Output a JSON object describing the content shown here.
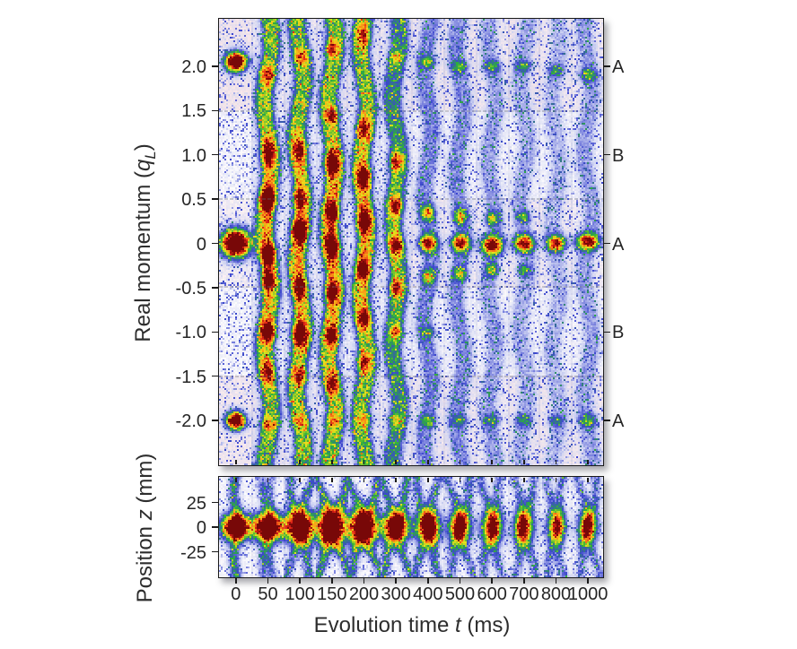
{
  "axes": {
    "x": {
      "label_prefix": "Evolution time ",
      "label_var": "t",
      "label_suffix": " (ms)",
      "tick_labels": [
        "0",
        "50",
        "100",
        "150",
        "200",
        "300",
        "400",
        "500",
        "600",
        "700",
        "800",
        "1000"
      ]
    },
    "momentum_y": {
      "label_prefix": "Real momentum (",
      "label_var": "q",
      "label_sub": "L",
      "label_suffix": ")",
      "tick_labels": [
        "2.0",
        "1.5",
        "1.0",
        "0.5",
        "0",
        "-0.5",
        "-1.0",
        "-1.5",
        "-2.0"
      ]
    },
    "position_y": {
      "label_prefix": "Position ",
      "label_var": "z",
      "label_suffix": " (mm)",
      "tick_labels": [
        "25",
        "0",
        "-25"
      ]
    }
  },
  "colors": {
    "background": "#ffffff",
    "text": "#262626",
    "panel_border": "#1b1b1b",
    "pink_background": "#f6dcde",
    "jet_low_blue": "#3c46ce",
    "jet_green": "#2cb03a",
    "jet_yellow": "#e8e21c",
    "jet_orange": "#fa9816",
    "jet_red": "#e52618",
    "jet_dark_red": "#780808"
  },
  "chart_data": [
    {
      "name": "momentum-distribution-heatmap",
      "type": "heatmap",
      "title": "",
      "xlabel": "Evolution time t (ms)",
      "ylabel": "Real momentum (qL)",
      "x_values_ms": [
        0,
        50,
        100,
        150,
        200,
        300,
        400,
        500,
        600,
        700,
        800,
        1000
      ],
      "ylim": [
        -2.52,
        2.52
      ],
      "y_ticks": [
        2.0,
        1.5,
        1.0,
        0.5,
        0,
        -0.5,
        -1.0,
        -1.5,
        -2.0
      ],
      "band_separators_q": [
        1.5,
        0.5,
        -0.5,
        -1.5
      ],
      "right_row_labels": [
        [
          "A",
          2.0
        ],
        [
          "B",
          1.0
        ],
        [
          "A",
          0.0
        ],
        [
          "B",
          -1.0
        ],
        [
          "A",
          -2.0
        ]
      ],
      "colormap": "jet_on_white",
      "legend": "none",
      "grid": "dotted horizontal band separators",
      "columns": [
        {
          "t": 0,
          "streak": 0.0,
          "peaks": [
            [
              0.0,
              1.6,
              5.2,
              5.0
            ],
            [
              2.05,
              1.45,
              3.9,
              3.6
            ],
            [
              -2.0,
              1.4,
              3.4,
              3.2
            ]
          ]
        },
        {
          "t": 50,
          "streak": 0.32,
          "peaks": [
            [
              -0.05,
              0.3,
              2.6,
              40
            ],
            [
              1.9,
              0.42,
              2.6,
              4.0
            ],
            [
              1.02,
              0.66,
              2.8,
              5.0
            ],
            [
              0.5,
              0.95,
              2.9,
              4.5
            ],
            [
              -0.12,
              0.72,
              2.8,
              3.8
            ],
            [
              -0.42,
              0.6,
              2.6,
              3.5
            ],
            [
              -1.0,
              0.78,
              2.8,
              4.0
            ],
            [
              -1.45,
              0.55,
              2.6,
              4.5
            ],
            [
              -2.05,
              0.33,
              3.0,
              3.0
            ]
          ]
        },
        {
          "t": 100,
          "streak": 0.33,
          "peaks": [
            [
              -0.1,
              0.3,
              2.7,
              40
            ],
            [
              2.1,
              0.4,
              2.8,
              3.0
            ],
            [
              1.05,
              0.55,
              2.8,
              4.5
            ],
            [
              0.5,
              0.5,
              2.6,
              3.5
            ],
            [
              0.15,
              0.85,
              2.9,
              4.0
            ],
            [
              -0.5,
              0.55,
              2.6,
              3.5
            ],
            [
              -1.02,
              0.92,
              3.0,
              4.2
            ],
            [
              -1.5,
              0.5,
              2.6,
              3.5
            ],
            [
              -2.0,
              0.3,
              3.0,
              3.0
            ]
          ]
        },
        {
          "t": 150,
          "streak": 0.34,
          "peaks": [
            [
              0.0,
              0.3,
              2.7,
              40
            ],
            [
              2.2,
              0.42,
              2.6,
              3.5
            ],
            [
              1.45,
              0.48,
              2.6,
              3.5
            ],
            [
              0.9,
              0.8,
              2.9,
              4.2
            ],
            [
              0.35,
              0.62,
              2.7,
              3.6
            ],
            [
              -0.02,
              0.8,
              2.9,
              4.0
            ],
            [
              -0.55,
              0.62,
              2.7,
              3.6
            ],
            [
              -1.05,
              0.63,
              2.7,
              3.8
            ],
            [
              -1.58,
              0.55,
              2.7,
              4.2
            ],
            [
              -2.0,
              0.3,
              3.0,
              3.0
            ]
          ]
        },
        {
          "t": 200,
          "streak": 0.32,
          "peaks": [
            [
              0.1,
              0.28,
              2.7,
              40
            ],
            [
              2.35,
              0.5,
              2.6,
              5.0
            ],
            [
              1.3,
              0.52,
              2.6,
              4.0
            ],
            [
              0.75,
              0.68,
              2.8,
              4.0
            ],
            [
              0.25,
              0.72,
              2.8,
              4.0
            ],
            [
              -0.3,
              0.56,
              2.7,
              3.6
            ],
            [
              -0.85,
              0.55,
              2.7,
              3.6
            ],
            [
              -1.35,
              0.5,
              2.6,
              3.6
            ],
            [
              -2.0,
              0.28,
              3.0,
              3.0
            ]
          ]
        },
        {
          "t": 300,
          "streak": 0.24,
          "peaks": [
            [
              0.0,
              0.2,
              2.7,
              35
            ],
            [
              2.1,
              0.32,
              2.8,
              2.8
            ],
            [
              0.92,
              0.55,
              2.7,
              3.6
            ],
            [
              0.42,
              0.6,
              2.7,
              3.4
            ],
            [
              -0.02,
              0.62,
              2.9,
              3.4
            ],
            [
              -0.5,
              0.52,
              2.7,
              3.2
            ],
            [
              -1.0,
              0.38,
              2.7,
              2.8
            ],
            [
              -2.0,
              0.28,
              3.0,
              2.6
            ]
          ]
        },
        {
          "t": 400,
          "streak": 0.13,
          "peaks": [
            [
              2.05,
              0.32,
              3.2,
              2.4
            ],
            [
              0.35,
              0.55,
              2.7,
              3.0
            ],
            [
              0.0,
              0.88,
              3.4,
              3.1
            ],
            [
              -0.38,
              0.5,
              2.7,
              2.8
            ],
            [
              -1.0,
              0.25,
              2.8,
              2.2
            ],
            [
              -2.0,
              0.3,
              3.2,
              2.4
            ]
          ]
        },
        {
          "t": 500,
          "streak": 0.12,
          "peaks": [
            [
              2.0,
              0.3,
              3.2,
              2.4
            ],
            [
              0.3,
              0.5,
              2.6,
              2.8
            ],
            [
              0.0,
              0.9,
              3.4,
              3.1
            ],
            [
              -0.35,
              0.45,
              2.6,
              2.6
            ],
            [
              -2.0,
              0.28,
              3.2,
              2.4
            ]
          ]
        },
        {
          "t": 600,
          "streak": 0.1,
          "peaks": [
            [
              2.0,
              0.3,
              3.2,
              2.4
            ],
            [
              0.28,
              0.45,
              2.6,
              2.6
            ],
            [
              -0.02,
              1.0,
              4.0,
              3.4
            ],
            [
              -0.3,
              0.4,
              2.6,
              2.6
            ],
            [
              -2.0,
              0.26,
              3.2,
              2.4
            ]
          ]
        },
        {
          "t": 700,
          "streak": 0.09,
          "peaks": [
            [
              2.0,
              0.28,
              3.2,
              2.4
            ],
            [
              0.3,
              0.35,
              2.5,
              2.4
            ],
            [
              0.0,
              0.95,
              3.7,
              3.1
            ],
            [
              -0.3,
              0.32,
              2.5,
              2.4
            ],
            [
              -2.0,
              0.25,
              3.2,
              2.4
            ]
          ]
        },
        {
          "t": 800,
          "streak": 0.08,
          "peaks": [
            [
              1.95,
              0.26,
              3.2,
              2.4
            ],
            [
              0.0,
              0.85,
              3.4,
              3.0
            ],
            [
              -2.0,
              0.24,
              3.2,
              2.4
            ]
          ]
        },
        {
          "t": 1000,
          "streak": 0.1,
          "peaks": [
            [
              1.9,
              0.32,
              3.6,
              2.6
            ],
            [
              0.02,
              0.95,
              4.2,
              3.0
            ],
            [
              -2.0,
              0.3,
              3.6,
              2.6
            ]
          ]
        }
      ]
    },
    {
      "name": "position-distribution-heatmap",
      "type": "heatmap",
      "title": "",
      "xlabel": "Evolution time t (ms)",
      "ylabel": "Position z (mm)",
      "x_values_ms": [
        0,
        50,
        100,
        150,
        200,
        300,
        400,
        500,
        600,
        700,
        800,
        1000
      ],
      "ylim": [
        -51,
        51
      ],
      "y_ticks": [
        25,
        0,
        -25
      ],
      "colormap": "jet_on_white",
      "columns": [
        {
          "t": 0,
          "streak": 0.18,
          "tilt": 0.0,
          "peaks": [
            [
              0,
              1.55,
              5.0,
              4.6
            ]
          ]
        },
        {
          "t": 50,
          "streak": 0.2,
          "tilt": 0.05,
          "peaks": [
            [
              0,
              1.55,
              5.4,
              4.8
            ]
          ]
        },
        {
          "t": 100,
          "streak": 0.3,
          "tilt": 0.12,
          "peaks": [
            [
              0,
              1.55,
              5.0,
              5.6
            ]
          ]
        },
        {
          "t": 150,
          "streak": 0.35,
          "tilt": 0.16,
          "peaks": [
            [
              0,
              1.55,
              5.0,
              6.6
            ]
          ]
        },
        {
          "t": 200,
          "streak": 0.33,
          "tilt": 0.16,
          "peaks": [
            [
              0,
              1.5,
              5.0,
              6.2
            ]
          ]
        },
        {
          "t": 300,
          "streak": 0.3,
          "tilt": 0.14,
          "peaks": [
            [
              0,
              1.4,
              4.6,
              5.2
            ]
          ]
        },
        {
          "t": 400,
          "streak": 0.27,
          "tilt": 0.12,
          "peaks": [
            [
              0,
              1.2,
              4.2,
              6.0
            ]
          ]
        },
        {
          "t": 500,
          "streak": 0.25,
          "tilt": 0.12,
          "peaks": [
            [
              0,
              1.05,
              3.9,
              6.0
            ]
          ]
        },
        {
          "t": 600,
          "streak": 0.22,
          "tilt": 0.1,
          "peaks": [
            [
              0,
              0.9,
              3.8,
              6.2
            ]
          ]
        },
        {
          "t": 700,
          "streak": 0.22,
          "tilt": 0.1,
          "peaks": [
            [
              0,
              0.85,
              3.7,
              6.4
            ]
          ]
        },
        {
          "t": 800,
          "streak": 0.2,
          "tilt": 0.08,
          "peaks": [
            [
              0,
              0.72,
              3.5,
              5.8
            ]
          ]
        },
        {
          "t": 1000,
          "streak": 0.22,
          "tilt": 0.1,
          "peaks": [
            [
              0,
              0.85,
              3.5,
              5.8
            ]
          ]
        }
      ]
    }
  ]
}
